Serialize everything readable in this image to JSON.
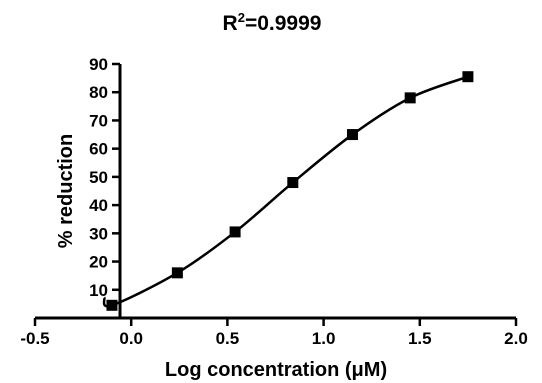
{
  "chart_data": {
    "type": "scatter",
    "title": "R²=0.9999",
    "title_base": "R",
    "title_sup": "2",
    "title_rest": "=0.9999",
    "xlabel": "Log concentration (μM)",
    "ylabel": "% reduction",
    "xlim": [
      -0.5,
      2.0
    ],
    "ylim": [
      0,
      90
    ],
    "x_ticks": [
      -0.5,
      0.0,
      0.5,
      1.0,
      1.5,
      2.0
    ],
    "x_tick_labels": [
      "-0.5",
      "0.0",
      "0.5",
      "1.0",
      "1.5",
      "2.0"
    ],
    "y_ticks": [
      10,
      20,
      30,
      40,
      50,
      60,
      70,
      80,
      90
    ],
    "y_tick_labels": [
      "10",
      "20",
      "30",
      "40",
      "50",
      "60",
      "70",
      "80",
      "90"
    ],
    "grid": false,
    "series": [
      {
        "x": [
          -0.1,
          0.24,
          0.54,
          0.84,
          1.15,
          1.45,
          1.75
        ],
        "y": [
          4.5,
          16,
          30.5,
          48,
          65,
          78,
          85.5
        ],
        "marker": "square",
        "fit": "sigmoidal",
        "color": "#000000"
      }
    ]
  }
}
